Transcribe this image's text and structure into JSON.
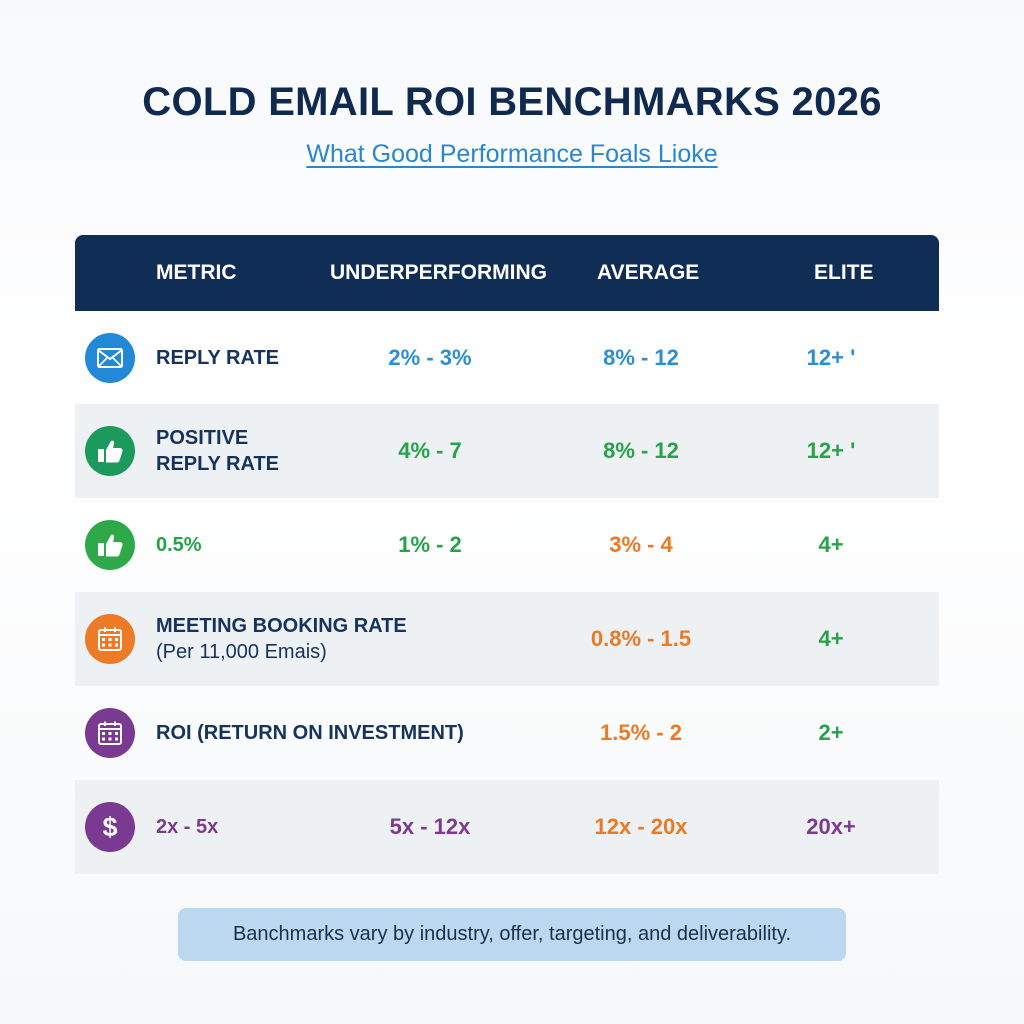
{
  "header": {
    "title": "COLD EMAIL ROI BENCHMARKS 2026",
    "subtitle": "What Good Performance Foals Lioke"
  },
  "table": {
    "columns": [
      "METRIC",
      "UNDERPERFORMING",
      "AVERAGE",
      "ELITE"
    ],
    "rows": [
      {
        "icon": "envelope-icon",
        "icon_color": "#2289d8",
        "metric": "REPLY RATE",
        "metric_sub": "",
        "underperforming": "2% - 3%",
        "average": "8% - 12",
        "elite": "12+ '"
      },
      {
        "icon": "thumbs-up-icon",
        "icon_color": "#1c9a5d",
        "metric": "POSITIVE",
        "metric_sub": "REPLY RATE",
        "underperforming": "4% - 7",
        "average": "8% - 12",
        "elite": "12+ '"
      },
      {
        "icon": "thumbs-up-icon",
        "icon_color": "#2fa84a",
        "metric": "0.5%",
        "metric_sub": "",
        "underperforming": "1% - 2",
        "average": "3% - 4",
        "elite": "4+"
      },
      {
        "icon": "calendar-icon",
        "icon_color": "#ed7a26",
        "metric": "MEETING BOOKING RATE",
        "metric_sub": "(Per 11,000 Emais)",
        "underperforming": "",
        "average": "0.8% - 1.5",
        "elite": "4+"
      },
      {
        "icon": "calendar-icon",
        "icon_color": "#7a3a91",
        "metric": "ROI (RETURN ON INVESTMENT)",
        "metric_sub": "",
        "underperforming": "",
        "average": "1.5% - 2",
        "elite": "2+"
      },
      {
        "icon": "dollar-icon",
        "icon_color": "#7a3a91",
        "metric": "2x - 5x",
        "metric_sub": "",
        "underperforming": "5x - 12x",
        "average": "12x - 20x",
        "elite": "20x+"
      }
    ]
  },
  "footer": {
    "note": "Banchmarks vary by industry, offer, targeting, and deliverability."
  }
}
